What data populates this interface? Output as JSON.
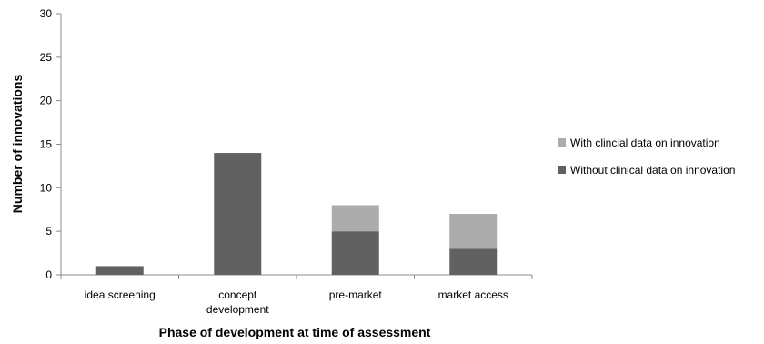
{
  "chart_data": {
    "type": "bar",
    "stacked": true,
    "categories": [
      [
        "idea screening"
      ],
      [
        "concept",
        "development"
      ],
      [
        "pre-market"
      ],
      [
        "market access"
      ]
    ],
    "series": [
      {
        "name": "Without clinical data on innovation",
        "values": [
          1,
          14,
          5,
          3
        ],
        "color": "#616161"
      },
      {
        "name": "With clincial data  on innovation",
        "values": [
          0,
          0,
          3,
          4
        ],
        "color": "#acacac"
      }
    ],
    "xlabel": "Phase of development at time of assessment",
    "ylabel": "Number of innovations",
    "ylim": [
      0,
      30
    ],
    "yticks": [
      0,
      5,
      10,
      15,
      20,
      25,
      30
    ],
    "grid": false,
    "legend": {
      "position": "right",
      "order": [
        1,
        0
      ]
    },
    "axis_color": "#8c8c8c"
  }
}
